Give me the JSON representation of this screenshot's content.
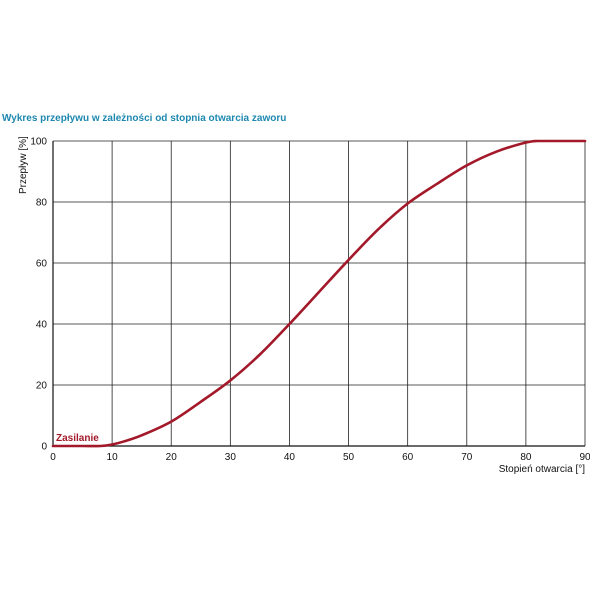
{
  "chart_data": {
    "type": "line",
    "title": "Wykres przepływu w zależności od stopnia otwarcia zaworu",
    "xlabel": "Stopień otwarcia [°]",
    "ylabel": "Przepływ [%]",
    "xlim": [
      0,
      90
    ],
    "ylim": [
      0,
      100
    ],
    "x_ticks": [
      "0",
      "10",
      "20",
      "30",
      "40",
      "50",
      "60",
      "70",
      "80",
      "90"
    ],
    "y_ticks": [
      "0",
      "20",
      "40",
      "60",
      "80",
      "100"
    ],
    "grid": true,
    "series": [
      {
        "name": "Zasilanie",
        "color": "#a3192a",
        "x": [
          0,
          5,
          8,
          10,
          12,
          15,
          20,
          25,
          30,
          35,
          40,
          45,
          50,
          55,
          60,
          65,
          70,
          75,
          80,
          82,
          85,
          90
        ],
        "y": [
          0,
          0,
          0,
          0.5,
          1.5,
          3.5,
          8,
          14.5,
          21.5,
          30,
          40,
          50.5,
          61,
          71,
          79.5,
          86,
          92,
          96.5,
          99.5,
          100,
          100,
          100
        ]
      }
    ]
  }
}
